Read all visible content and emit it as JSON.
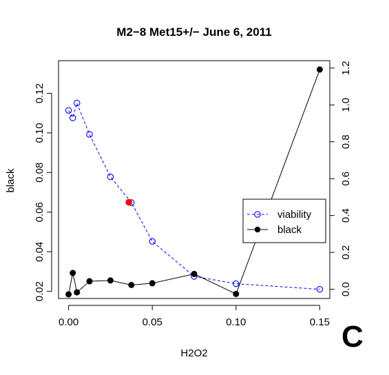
{
  "chart_data": {
    "type": "line",
    "title": "M2−8 Met15+/− June 6, 2011",
    "xlabel": "H2O2",
    "ylabel": "black",
    "panel_label": "C",
    "xlim": [
      -0.006,
      0.156
    ],
    "ylim": [
      0.0164,
      0.1365
    ],
    "y2lim": [
      -0.05,
      1.24
    ],
    "x_ticks": [
      0.0,
      0.05,
      0.1,
      0.15
    ],
    "x_tick_labels": [
      "0.00",
      "0.05",
      "0.10",
      "0.15"
    ],
    "y_ticks": [
      0.02,
      0.04,
      0.06,
      0.08,
      0.1,
      0.12
    ],
    "y_tick_labels": [
      "0.02",
      "0.04",
      "0.06",
      "0.08",
      "0.10",
      "0.12"
    ],
    "y2_ticks": [
      0.0,
      0.2,
      0.4,
      0.6,
      0.8,
      1.0,
      1.2
    ],
    "y2_tick_labels": [
      "0.0",
      "0.2",
      "0.4",
      "0.6",
      "0.8",
      "1.0",
      "1.2"
    ],
    "grid": false,
    "legend": {
      "position": "right",
      "entries": [
        "viability",
        "black"
      ]
    },
    "series": [
      {
        "name": "viability",
        "axis": "right",
        "style": "dashed-open-circle",
        "color": "#0000ff",
        "x": [
          0.0,
          0.0025,
          0.005,
          0.0125,
          0.025,
          0.0375,
          0.05,
          0.075,
          0.1,
          0.15
        ],
        "y": [
          0.97,
          0.93,
          1.01,
          0.84,
          0.61,
          0.47,
          0.26,
          0.07,
          0.03,
          0.0
        ]
      },
      {
        "name": "black",
        "axis": "left",
        "style": "solid-filled-circle",
        "color": "#000000",
        "x": [
          0.0,
          0.0025,
          0.005,
          0.0125,
          0.025,
          0.0375,
          0.05,
          0.075,
          0.1,
          0.15
        ],
        "y": [
          0.0185,
          0.0293,
          0.0195,
          0.0251,
          0.0255,
          0.0232,
          0.0241,
          0.0288,
          0.0187,
          0.132
        ]
      }
    ],
    "highlight": {
      "x": 0.036,
      "y": 0.065,
      "axis": "left",
      "color": "#ff0000"
    }
  }
}
